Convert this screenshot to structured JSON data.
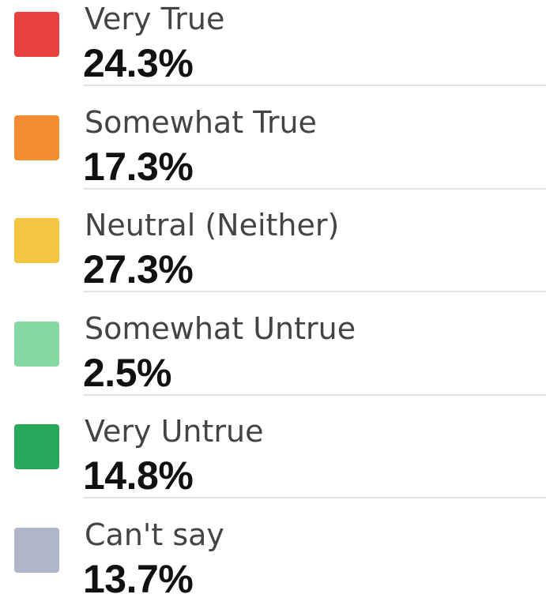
{
  "items": [
    {
      "label": "Very True",
      "value_label": "24.3%",
      "color": "#e8403f"
    },
    {
      "label": "Somewhat True",
      "value_label": "17.3%",
      "color": "#f28c2e"
    },
    {
      "label": "Neutral (Neither)",
      "value_label": "27.3%",
      "color": "#f5c542"
    },
    {
      "label": "Somewhat Untrue",
      "value_label": "2.5%",
      "color": "#86d9a4"
    },
    {
      "label": "Very Untrue",
      "value_label": "14.8%",
      "color": "#27a85a"
    },
    {
      "label": "Can't say",
      "value_label": "13.7%",
      "color": "#b0b5c9"
    }
  ]
}
